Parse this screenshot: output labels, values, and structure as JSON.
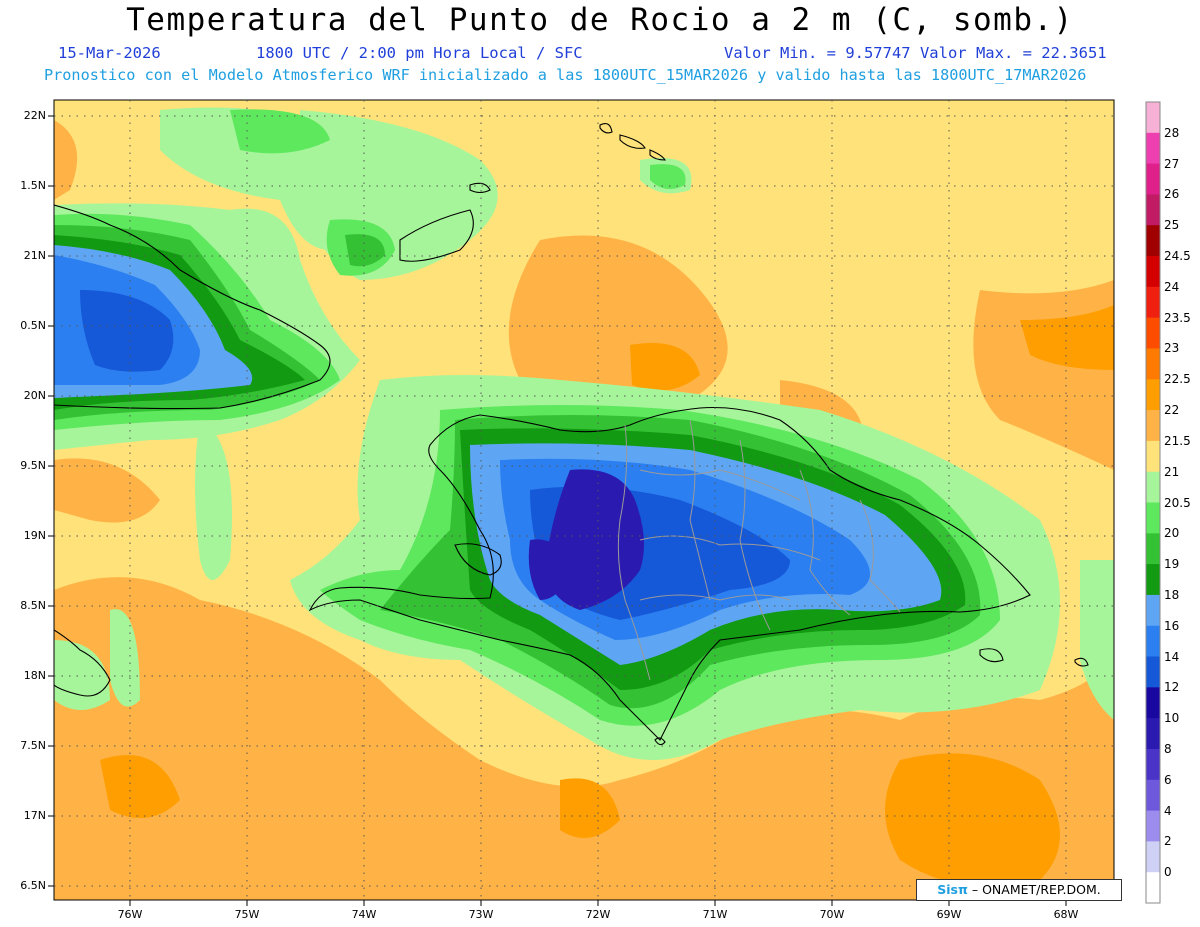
{
  "title": "Temperatura del Punto de Rocio a 2 m (C, somb.)",
  "date": "15-Mar-2026",
  "time_info": "1800 UTC / 2:00 pm Hora Local / SFC",
  "min_max": "Valor Min. = 9.57747  Valor Max. = 22.3651",
  "forecast_note": "Pronostico con el Modelo Atmosferico WRF inicializado a las 1800UTC_15MAR2026 y valido hasta las  1800UTC_17MAR2026",
  "credit": {
    "logo": "Sisπ",
    "text": "– ONAMET/REP.DOM."
  },
  "lat_labels": [
    "22N",
    "1.5N",
    "21N",
    "0.5N",
    "20N",
    "9.5N",
    "19N",
    "8.5N",
    "18N",
    "7.5N",
    "17N",
    "6.5N"
  ],
  "lon_labels": [
    "76W",
    "75W",
    "74W",
    "73W",
    "72W",
    "71W",
    "70W",
    "69W",
    "68W"
  ],
  "legend": {
    "values": [
      "28",
      "27",
      "26",
      "25",
      "24.5",
      "24",
      "23.5",
      "23",
      "22.5",
      "22",
      "21.5",
      "21",
      "20.5",
      "20",
      "19",
      "18",
      "16",
      "14",
      "12",
      "10",
      "8",
      "6",
      "4",
      "2",
      "0"
    ],
    "colors": [
      "#f7b0d6",
      "#ee3fb0",
      "#e0208a",
      "#c01b64",
      "#a00000",
      "#d40000",
      "#f02010",
      "#ff4d00",
      "#ff7a00",
      "#ff9e00",
      "#ffb347",
      "#ffe37a",
      "#a7f59a",
      "#5ee85e",
      "#34c234",
      "#129a12",
      "#5ea6f4",
      "#2b7ff0",
      "#1558d8",
      "#1808a0",
      "#2a1ab0",
      "#4a34c8",
      "#6e58dc",
      "#9c8cee",
      "#cfd0f6",
      "#ffffff"
    ]
  },
  "colors": {
    "sea_base": "#ffe37a",
    "orange": "#ffb347",
    "dark_orange": "#ff9e00",
    "light_green": "#a7f59a",
    "green": "#5ee85e",
    "mid_green": "#34c234",
    "dark_green": "#129a12",
    "light_blue": "#5ea6f4",
    "blue": "#2b7ff0",
    "mid_blue": "#1558d8",
    "navy": "#2a1ab0",
    "coast": "#000000",
    "borders": "#9a9a9a",
    "title_blue": "#1f3fd8",
    "note_cyan": "#1f9fe0"
  }
}
